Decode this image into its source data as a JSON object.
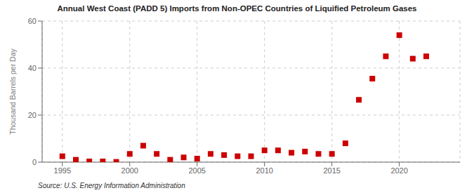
{
  "chart_data": {
    "type": "scatter",
    "title": "Annual West Coast (PADD 5) Imports from Non-OPEC Countries of Liquified Petroleum Gases",
    "ylabel": "Thousand Barrels per Day",
    "annotations": [
      "Source: U.S. Energy Information Administration"
    ],
    "x": [
      1995,
      1996,
      1997,
      1998,
      1999,
      2000,
      2001,
      2002,
      2003,
      2004,
      2005,
      2006,
      2007,
      2008,
      2009,
      2010,
      2011,
      2012,
      2013,
      2014,
      2015,
      2016,
      2017,
      2018,
      2019,
      2020,
      2021,
      2022
    ],
    "values": [
      2.5,
      1.0,
      0.3,
      0.3,
      0.1,
      3.5,
      7.0,
      3.5,
      1.0,
      2.0,
      1.5,
      3.5,
      3.0,
      2.5,
      2.5,
      5.0,
      5.0,
      4.0,
      4.5,
      3.5,
      3.5,
      8.0,
      26.5,
      35.5,
      45.0,
      54.0,
      44.0,
      45.0
    ],
    "color": "#cc0000",
    "marker": "square",
    "xlim": [
      1993.5,
      2024.5
    ],
    "ylim": [
      0,
      60
    ],
    "xticks": [
      1995,
      2000,
      2005,
      2010,
      2015,
      2020
    ],
    "yticks": [
      0,
      20,
      40,
      60
    ],
    "grid": true
  }
}
